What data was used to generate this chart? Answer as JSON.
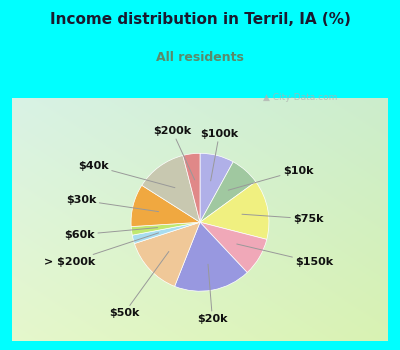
{
  "title": "Income distribution in Terril, IA (%)",
  "subtitle": "All residents",
  "title_color": "#1a1a2e",
  "subtitle_color": "#5a8a6a",
  "bg_cyan": "#00ffff",
  "labels": [
    "$100k",
    "$10k",
    "$75k",
    "$150k",
    "$20k",
    "$50k",
    "> $200k",
    "$60k",
    "$30k",
    "$40k",
    "$200k"
  ],
  "values": [
    8,
    7,
    14,
    9,
    18,
    14,
    2,
    2,
    10,
    12,
    4
  ],
  "colors": [
    "#b0b0e8",
    "#a0c8a0",
    "#f0f080",
    "#f0a8b8",
    "#9898e0",
    "#f0c898",
    "#a8ddf0",
    "#c0e870",
    "#f0a840",
    "#c8c8b0",
    "#e08888"
  ],
  "title_fontsize": 11,
  "subtitle_fontsize": 9,
  "label_fontsize": 8,
  "watermark": "City-Data.com",
  "label_coords": [
    [
      "$100k",
      0.28,
      1.28
    ],
    [
      "$10k",
      1.2,
      0.75
    ],
    [
      "$75k",
      1.35,
      0.05
    ],
    [
      "$150k",
      1.38,
      -0.58
    ],
    [
      "$20k",
      0.18,
      -1.4
    ],
    [
      "$50k",
      -0.88,
      -1.32
    ],
    [
      "> $200k",
      -1.52,
      -0.58
    ],
    [
      "$60k",
      -1.52,
      -0.18
    ],
    [
      "$30k",
      -1.5,
      0.32
    ],
    [
      "$40k",
      -1.32,
      0.82
    ],
    [
      "$200k",
      -0.4,
      1.32
    ]
  ]
}
